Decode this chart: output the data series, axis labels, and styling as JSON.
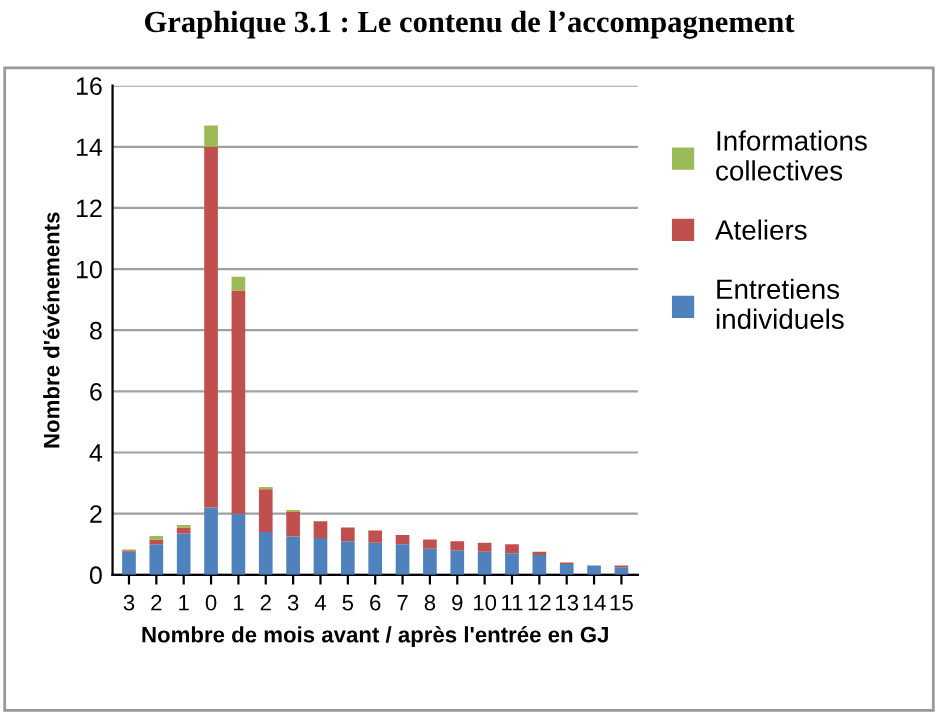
{
  "chart_data": {
    "type": "bar",
    "title": "Graphique 3.1 : Le contenu de l’accompagnement",
    "xlabel": "Nombre de mois avant / après l'entrée en GJ",
    "ylabel": "Nombre d'événements",
    "categories": [
      "3",
      "2",
      "1",
      "0",
      "1",
      "2",
      "3",
      "4",
      "5",
      "6",
      "7",
      "8",
      "9",
      "10",
      "11",
      "12",
      "13",
      "14",
      "15"
    ],
    "stacked": true,
    "legend": "right",
    "grid": "y",
    "ylim": [
      0,
      16
    ],
    "yticks": [
      0,
      2,
      4,
      6,
      8,
      10,
      12,
      14,
      16
    ],
    "series": [
      {
        "name": "Entretiens individuels",
        "color": "#4f81bd",
        "values": [
          0.75,
          1.0,
          1.35,
          2.2,
          2.0,
          1.4,
          1.25,
          1.2,
          1.1,
          1.05,
          1.0,
          0.85,
          0.8,
          0.75,
          0.7,
          0.65,
          0.35,
          0.3,
          0.25
        ]
      },
      {
        "name": "Ateliers",
        "color": "#c0504d",
        "values": [
          0.05,
          0.15,
          0.2,
          11.8,
          7.3,
          1.4,
          0.8,
          0.55,
          0.45,
          0.4,
          0.3,
          0.3,
          0.3,
          0.3,
          0.3,
          0.1,
          0.05,
          0,
          0.05
        ]
      },
      {
        "name": "Informations collectives",
        "color": "#9bbb59",
        "values": [
          0.03,
          0.12,
          0.08,
          0.7,
          0.45,
          0.07,
          0.07,
          null,
          null,
          null,
          null,
          null,
          null,
          null,
          null,
          null,
          null,
          null,
          null
        ]
      }
    ]
  }
}
